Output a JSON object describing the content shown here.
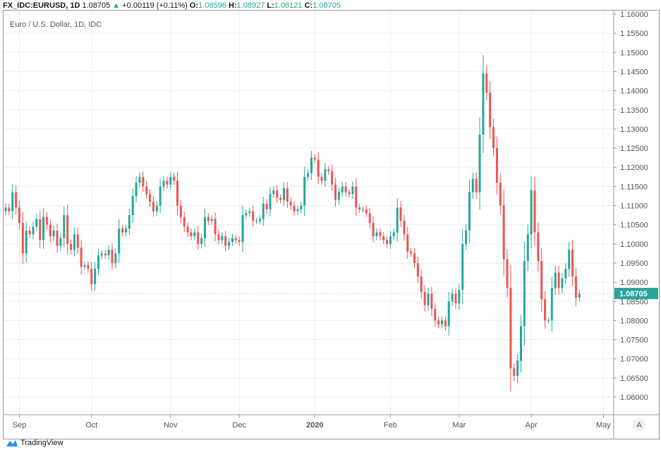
{
  "legend": {
    "symbol": "FX_IDC:EURUSD, 1D",
    "last": "1.08705",
    "change": "+0.00119 (+0.11%)",
    "o_label": "O:",
    "o": "1.08596",
    "h_label": "H:",
    "h": "1.08927",
    "l_label": "L:",
    "l": "1.08121",
    "c_label": "C:",
    "c": "1.08705"
  },
  "subtitle": "Euro / U.S. Dollar, 1D, IDC",
  "brand": "TradingView",
  "scale_button": "A",
  "colors": {
    "up": "#26a69a",
    "down": "#ef5350",
    "grid": "#e8eef3"
  },
  "chart_data": {
    "type": "candlestick",
    "title": "Euro / U.S. Dollar, 1D, IDC",
    "ylim": [
      1.058,
      1.161
    ],
    "yticks": [
      "1.16000",
      "1.15500",
      "1.15000",
      "1.14500",
      "1.14000",
      "1.13500",
      "1.13000",
      "1.12500",
      "1.12000",
      "1.11500",
      "1.11000",
      "1.10500",
      "1.10000",
      "1.09500",
      "1.09000",
      "1.08500",
      "1.08000",
      "1.07500",
      "1.07000",
      "1.06500",
      "1.06000"
    ],
    "xticks": [
      {
        "label": "Sep",
        "index": 4
      },
      {
        "label": "Oct",
        "index": 25
      },
      {
        "label": "Nov",
        "index": 48
      },
      {
        "label": "Dec",
        "index": 68
      },
      {
        "label": "2020",
        "index": 90
      },
      {
        "label": "Feb",
        "index": 112
      },
      {
        "label": "Mar",
        "index": 132
      },
      {
        "label": "Apr",
        "index": 153
      },
      {
        "label": "May",
        "index": 174
      }
    ],
    "last_price": "1.08705",
    "close": [
      1.1095,
      1.1085,
      1.1135,
      1.1095,
      1.1055,
      1.0975,
      1.1035,
      1.1025,
      1.1045,
      1.1065,
      1.101,
      1.107,
      1.105,
      1.102,
      1.1035,
      1.0995,
      1.1015,
      1.1075,
      1.1,
      1.0985,
      1.1025,
      1.099,
      1.094,
      1.0945,
      1.0935,
      1.0895,
      1.0935,
      1.097,
      1.0975,
      1.097,
      1.0985,
      1.095,
      1.0975,
      1.104,
      1.103,
      1.104,
      1.1075,
      1.1125,
      1.116,
      1.1175,
      1.115,
      1.113,
      1.111,
      1.1085,
      1.11,
      1.115,
      1.1165,
      1.1155,
      1.1175,
      1.1165,
      1.11,
      1.107,
      1.1045,
      1.103,
      1.102,
      1.103,
      1.1,
      1.1015,
      1.107,
      1.106,
      1.1065,
      1.1025,
      1.101,
      1.102,
      1.0995,
      1.1005,
      1.1015,
      1.101,
      1.1005,
      1.1075,
      1.108,
      1.1085,
      1.106,
      1.106,
      1.1065,
      1.1105,
      1.109,
      1.113,
      1.114,
      1.112,
      1.1115,
      1.1145,
      1.111,
      1.11,
      1.1085,
      1.109,
      1.11,
      1.1175,
      1.1185,
      1.1225,
      1.122,
      1.1175,
      1.1165,
      1.1195,
      1.119,
      1.1155,
      1.1115,
      1.1135,
      1.115,
      1.1135,
      1.113,
      1.115,
      1.1095,
      1.109,
      1.109,
      1.108,
      1.1055,
      1.102,
      1.103,
      1.102,
      1.101,
      1.1,
      1.102,
      1.103,
      1.1095,
      1.106,
      1.1025,
      1.098,
      1.0975,
      1.095,
      1.0915,
      1.0875,
      1.084,
      1.087,
      1.083,
      1.08,
      1.079,
      1.08,
      1.0785,
      1.085,
      1.087,
      1.0845,
      1.088,
      1.1,
      1.1035,
      1.1135,
      1.117,
      1.1135,
      1.1285,
      1.1445,
      1.1395,
      1.1305,
      1.125,
      1.116,
      1.11,
      1.096,
      1.0885,
      1.0675,
      1.0655,
      1.0695,
      1.0785,
      1.0955,
      1.1025,
      1.114,
      1.103,
      1.0955,
      1.0855,
      1.08,
      1.08,
      1.0885,
      1.0925,
      1.0885,
      1.091,
      1.0935,
      1.0985,
      1.0915,
      1.086,
      1.08705
    ]
  }
}
